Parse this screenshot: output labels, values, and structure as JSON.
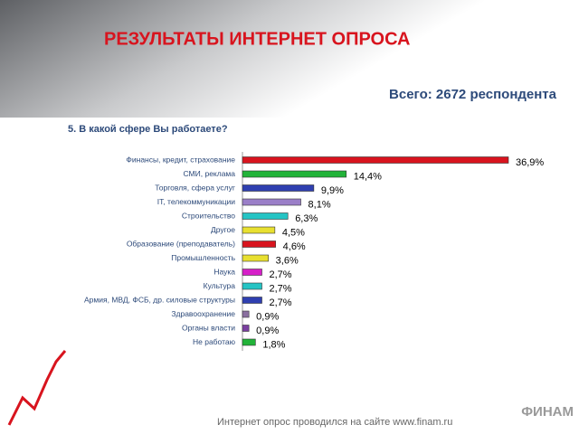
{
  "slide": {
    "heading": "РЕЗУЛЬТАТЫ ИНТЕРНЕТ ОПРОСА",
    "total": "Всего: 2672 респондента",
    "footer": "Интернет опрос проводился на сайте www.finam.ru",
    "logo": "ФИНАМ"
  },
  "chart_data": {
    "type": "bar",
    "orientation": "horizontal",
    "title": "5. В какой сфере Вы работаете?",
    "categories": [
      "Финансы, кредит, страхование",
      "СМИ, реклама",
      "Торговля, сфера услуг",
      "IT, телекоммуникации",
      "Строительство",
      "Другое",
      "Образование (преподаватель)",
      "Промышленность",
      "Наука",
      "Культура",
      "Армия, МВД, ФСБ, др. силовые структуры",
      "Здравоохранение",
      "Органы власти",
      "Не работаю"
    ],
    "values": [
      36.9,
      14.4,
      9.9,
      8.1,
      6.3,
      4.5,
      4.6,
      3.6,
      2.7,
      2.7,
      2.7,
      0.9,
      0.9,
      1.8
    ],
    "value_labels": [
      "36,9%",
      "14,4%",
      "9,9%",
      "8,1%",
      "6,3%",
      "4,5%",
      "4,6%",
      "3,6%",
      "2,7%",
      "2,7%",
      "2,7%",
      "0,9%",
      "0,9%",
      "1,8%"
    ],
    "colors": [
      "#d8141e",
      "#22b339",
      "#2f3fb0",
      "#9b7fc8",
      "#25c4c4",
      "#e8e030",
      "#d8141e",
      "#e8e030",
      "#d61fc8",
      "#25c4c4",
      "#2f3fb0",
      "#8a6fa0",
      "#7a3fa0",
      "#22b339"
    ]
  }
}
